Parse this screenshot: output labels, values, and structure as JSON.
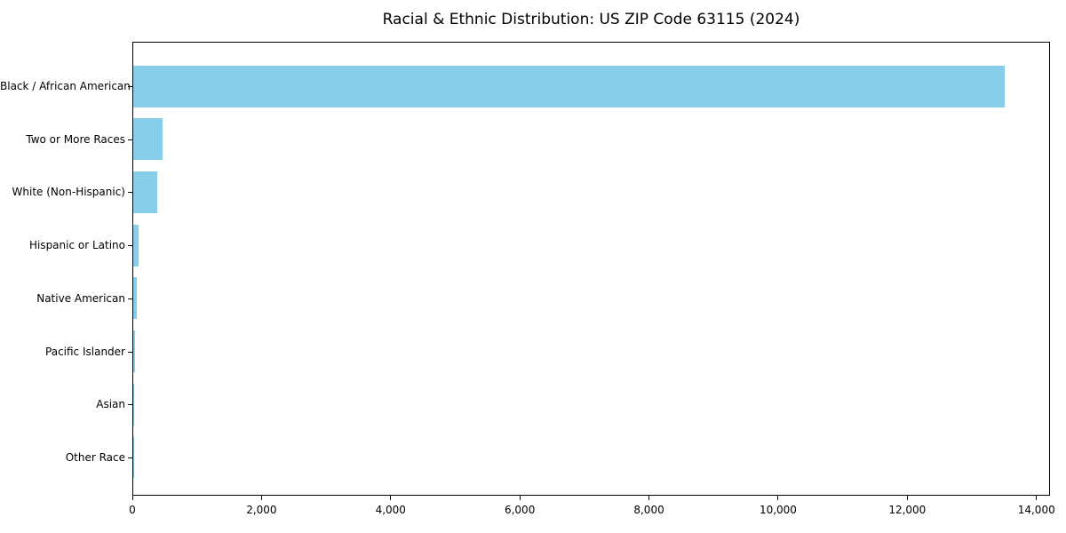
{
  "chart_data": {
    "type": "bar",
    "orientation": "horizontal",
    "title": "Racial & Ethnic Distribution: US ZIP Code 63115 (2024)",
    "categories": [
      "Black / African American",
      "Two or More Races",
      "White (Non-Hispanic)",
      "Hispanic or Latino",
      "Native American",
      "Pacific Islander",
      "Asian",
      "Other Race"
    ],
    "values": [
      13500,
      450,
      370,
      80,
      50,
      30,
      10,
      5
    ],
    "xlabel": "",
    "ylabel": "",
    "xlim": [
      0,
      14210
    ],
    "xticks": [
      0,
      2000,
      4000,
      6000,
      8000,
      10000,
      12000,
      14000
    ],
    "xtick_labels": [
      "0",
      "2,000",
      "4,000",
      "6,000",
      "8,000",
      "10,000",
      "12,000",
      "14,000"
    ],
    "grid": false,
    "legend": null,
    "bar_color": "#87CEEB",
    "frame_color": "#000000",
    "background": "#FFFFFF"
  }
}
